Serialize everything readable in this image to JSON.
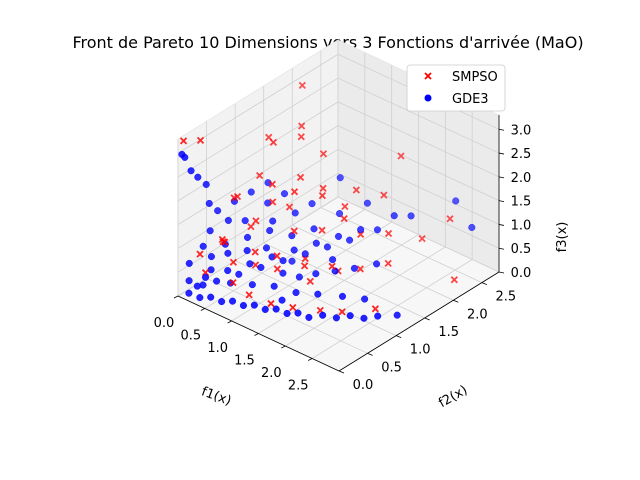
{
  "chart_data": {
    "type": "scatter",
    "title": "Front de Pareto 10 Dimensions vers 3 Fonctions d'arrivée (MaO)",
    "xlabel": "f1(x)",
    "ylabel": "f2(x)",
    "zlabel": "f3(x)",
    "xlim": [
      0,
      3.0
    ],
    "ylim": [
      0,
      2.8
    ],
    "zlim": [
      0,
      3.3
    ],
    "x_ticks": [
      "0.0",
      "0.5",
      "1.0",
      "1.5",
      "2.0",
      "2.5"
    ],
    "y_ticks": [
      "0.0",
      "0.5",
      "1.0",
      "1.5",
      "2.0",
      "2.5"
    ],
    "z_ticks": [
      "0.0",
      "0.5",
      "1.0",
      "1.5",
      "2.0",
      "2.5",
      "3.0"
    ],
    "grid": true,
    "legend_position": "top-right",
    "series": [
      {
        "name": "SMPSO",
        "marker": "x",
        "color": "#ff0000",
        "points": [
          [
            0.05,
            0.05,
            3.25
          ],
          [
            0.1,
            0.3,
            3.1
          ],
          [
            0.4,
            1.8,
            3.3
          ],
          [
            0.2,
            1.4,
            2.4
          ],
          [
            0.5,
            1.2,
            2.6
          ],
          [
            0.7,
            1.5,
            2.6
          ],
          [
            0.6,
            1.6,
            2.7
          ],
          [
            0.8,
            0.9,
            2.1
          ],
          [
            0.3,
            0.7,
            1.7
          ],
          [
            1.0,
            1.1,
            1.9
          ],
          [
            0.9,
            1.3,
            2.0
          ],
          [
            1.2,
            1.4,
            1.7
          ],
          [
            0.4,
            0.4,
            1.1
          ],
          [
            0.6,
            0.8,
            1.3
          ],
          [
            0.8,
            0.6,
            0.9
          ],
          [
            1.1,
            1.0,
            1.2
          ],
          [
            1.3,
            1.3,
            1.1
          ],
          [
            1.5,
            1.5,
            1.3
          ],
          [
            1.7,
            1.6,
            1.0
          ],
          [
            1.9,
            1.9,
            0.9
          ],
          [
            0.5,
            0.5,
            0.6
          ],
          [
            0.7,
            0.7,
            0.5
          ],
          [
            1.0,
            0.8,
            0.5
          ],
          [
            1.2,
            1.1,
            0.6
          ],
          [
            1.4,
            1.0,
            0.3
          ],
          [
            1.6,
            1.3,
            0.4
          ],
          [
            1.8,
            1.5,
            0.4
          ],
          [
            2.0,
            1.8,
            0.4
          ],
          [
            2.1,
            2.3,
            0.6
          ],
          [
            2.3,
            2.6,
            0.9
          ],
          [
            0.3,
            0.2,
            0.5
          ],
          [
            0.6,
            0.4,
            0.3
          ],
          [
            0.9,
            0.4,
            0.2
          ],
          [
            1.2,
            0.5,
            0.1
          ],
          [
            1.5,
            0.6,
            0.1
          ],
          [
            1.8,
            0.8,
            0.05
          ],
          [
            2.1,
            0.9,
            0.1
          ],
          [
            2.4,
            1.2,
            0.1
          ],
          [
            2.7,
            2.3,
            0.05
          ],
          [
            0.2,
            0.6,
            0.8
          ],
          [
            0.4,
            0.9,
            1.0
          ],
          [
            0.8,
            1.2,
            1.4
          ],
          [
            1.0,
            1.6,
            1.6
          ],
          [
            1.3,
            1.9,
            1.5
          ],
          [
            1.6,
            2.1,
            1.4
          ],
          [
            0.9,
            1.7,
            2.2
          ],
          [
            0.7,
            1.0,
            1.6
          ],
          [
            1.1,
            0.7,
            0.9
          ],
          [
            1.4,
            0.9,
            0.7
          ],
          [
            1.7,
            1.1,
            0.7
          ],
          [
            0.25,
            0.15,
            0.9
          ],
          [
            0.55,
            0.3,
            1.2
          ],
          [
            0.15,
            0.9,
            1.5
          ],
          [
            0.35,
            1.1,
            1.9
          ],
          [
            1.3,
            1.7,
            1.3
          ],
          [
            1.6,
            2.4,
            2.0
          ]
        ]
      },
      {
        "name": "GDE3",
        "marker": "o",
        "color": "#0000ff",
        "points": [
          [
            0.02,
            0.05,
            2.95
          ],
          [
            0.02,
            0.1,
            2.85
          ],
          [
            0.03,
            0.2,
            2.5
          ],
          [
            0.05,
            0.3,
            2.3
          ],
          [
            0.1,
            0.4,
            2.1
          ],
          [
            0.05,
            0.5,
            1.6
          ],
          [
            0.1,
            0.6,
            1.4
          ],
          [
            0.2,
            0.8,
            1.5
          ],
          [
            0.3,
            1.0,
            1.6
          ],
          [
            0.4,
            0.8,
            1.2
          ],
          [
            0.5,
            1.1,
            1.4
          ],
          [
            0.6,
            1.3,
            1.5
          ],
          [
            0.4,
            1.2,
            1.7
          ],
          [
            0.8,
            1.3,
            1.2
          ],
          [
            0.9,
            1.5,
            1.3
          ],
          [
            1.2,
            1.7,
            1.1
          ],
          [
            1.4,
            2.0,
            1.2
          ],
          [
            1.0,
            1.9,
            1.6
          ],
          [
            2.3,
            2.7,
            1.2
          ],
          [
            2.6,
            2.7,
            0.8
          ],
          [
            0.1,
            0.1,
            0.3
          ],
          [
            0.2,
            0.15,
            0.2
          ],
          [
            0.3,
            0.2,
            0.4
          ],
          [
            0.4,
            0.3,
            0.3
          ],
          [
            0.5,
            0.4,
            0.5
          ],
          [
            0.6,
            0.5,
            0.4
          ],
          [
            0.7,
            0.6,
            0.6
          ],
          [
            0.8,
            0.7,
            0.5
          ],
          [
            0.9,
            0.8,
            0.7
          ],
          [
            1.0,
            0.9,
            0.6
          ],
          [
            1.1,
            1.0,
            0.8
          ],
          [
            1.2,
            1.1,
            0.7
          ],
          [
            1.3,
            1.2,
            0.9
          ],
          [
            1.4,
            1.3,
            0.8
          ],
          [
            1.5,
            1.4,
            1.0
          ],
          [
            1.6,
            1.5,
            0.9
          ],
          [
            1.7,
            1.6,
            1.1
          ],
          [
            1.8,
            1.8,
            1.0
          ],
          [
            1.9,
            2.0,
            1.2
          ],
          [
            2.0,
            2.2,
            1.1
          ],
          [
            0.15,
            0.05,
            0.1
          ],
          [
            0.3,
            0.1,
            0.05
          ],
          [
            0.45,
            0.15,
            0.1
          ],
          [
            0.6,
            0.2,
            0.05
          ],
          [
            0.75,
            0.25,
            0.1
          ],
          [
            0.9,
            0.3,
            0.05
          ],
          [
            1.05,
            0.35,
            0.1
          ],
          [
            1.2,
            0.4,
            0.05
          ],
          [
            1.35,
            0.45,
            0.1
          ],
          [
            1.5,
            0.5,
            0.05
          ],
          [
            1.65,
            0.55,
            0.1
          ],
          [
            1.8,
            0.6,
            0.05
          ],
          [
            1.95,
            0.7,
            0.1
          ],
          [
            2.1,
            0.8,
            0.05
          ],
          [
            2.25,
            0.9,
            0.1
          ],
          [
            2.4,
            1.0,
            0.05
          ],
          [
            2.55,
            1.1,
            0.1
          ],
          [
            2.7,
            1.3,
            0.05
          ],
          [
            0.35,
            0.5,
            0.9
          ],
          [
            0.55,
            0.7,
            1.0
          ],
          [
            0.75,
            0.9,
            1.1
          ],
          [
            0.95,
            1.1,
            0.95
          ],
          [
            1.15,
            1.3,
            1.05
          ],
          [
            0.25,
            0.35,
            0.7
          ],
          [
            0.45,
            0.45,
            0.8
          ],
          [
            0.65,
            0.6,
            0.85
          ],
          [
            0.85,
            0.75,
            0.9
          ],
          [
            1.05,
            0.85,
            0.4
          ],
          [
            1.25,
            0.95,
            0.35
          ],
          [
            1.45,
            1.05,
            0.45
          ],
          [
            1.65,
            1.2,
            0.5
          ],
          [
            1.85,
            1.35,
            0.55
          ],
          [
            2.05,
            1.55,
            0.6
          ],
          [
            0.2,
            0.25,
            0.15
          ],
          [
            0.5,
            0.45,
            0.2
          ],
          [
            0.8,
            0.55,
            0.25
          ],
          [
            1.1,
            0.65,
            0.3
          ],
          [
            1.4,
            0.75,
            0.25
          ],
          [
            1.7,
            0.85,
            0.3
          ],
          [
            2.0,
            1.0,
            0.3
          ],
          [
            0.05,
            0.15,
            0.6
          ],
          [
            0.15,
            0.3,
            0.9
          ],
          [
            0.3,
            0.6,
            1.3
          ],
          [
            0.12,
            0.45,
            1.1
          ],
          [
            0.7,
            1.0,
            1.2
          ],
          [
            0.35,
            0.25,
            0.55
          ],
          [
            1.55,
            1.25,
            0.65
          ],
          [
            0.9,
            1.15,
            0.35
          ],
          [
            2.2,
            1.2,
            0.2
          ],
          [
            1.3,
            0.6,
            0.15
          ]
        ]
      }
    ]
  }
}
